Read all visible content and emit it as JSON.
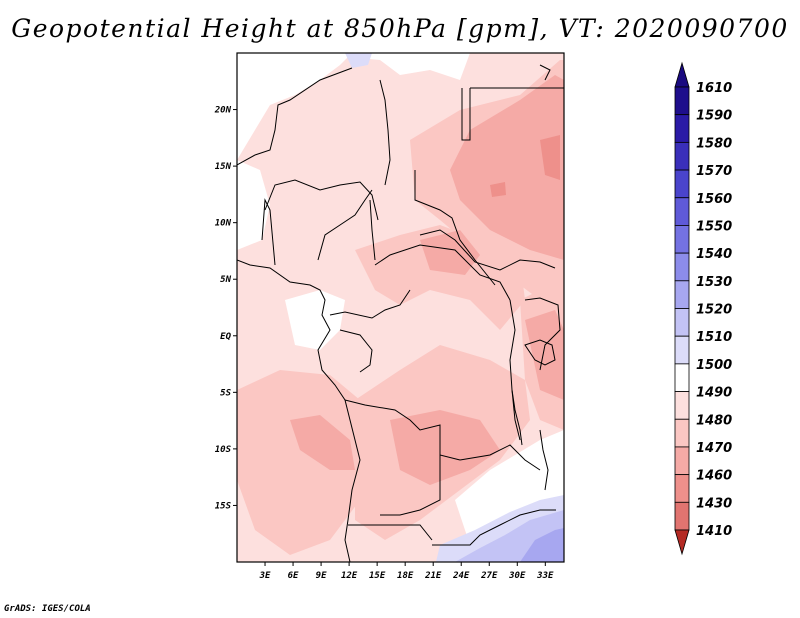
{
  "title": "Geopotential Height at 850hPa [gpm], VT: 2020090700",
  "credit": "GrADS: IGES/COLA",
  "map": {
    "lat_labels": [
      {
        "label": "20N",
        "lat": 20
      },
      {
        "label": "15N",
        "lat": 15
      },
      {
        "label": "10N",
        "lat": 10
      },
      {
        "label": "5N",
        "lat": 5
      },
      {
        "label": "EQ",
        "lat": 0
      },
      {
        "label": "5S",
        "lat": -5
      },
      {
        "label": "10S",
        "lat": -10
      },
      {
        "label": "15S",
        "lat": -15
      }
    ],
    "lon_labels": [
      {
        "label": "3E",
        "lon": 3
      },
      {
        "label": "6E",
        "lon": 6
      },
      {
        "label": "9E",
        "lon": 9
      },
      {
        "label": "12E",
        "lon": 12
      },
      {
        "label": "15E",
        "lon": 15
      },
      {
        "label": "18E",
        "lon": 18
      },
      {
        "label": "21E",
        "lon": 21
      },
      {
        "label": "24E",
        "lon": 24
      },
      {
        "label": "27E",
        "lon": 27
      },
      {
        "label": "30E",
        "lon": 30
      },
      {
        "label": "33E",
        "lon": 33
      }
    ],
    "lon_range": [
      0,
      35
    ],
    "lat_range": [
      -20,
      25
    ]
  },
  "colorbar": {
    "levels": [
      {
        "label": "1610",
        "color": "#1e0e8c"
      },
      {
        "label": "1590",
        "color": "#2a1aa6"
      },
      {
        "label": "1580",
        "color": "#3a2fba"
      },
      {
        "label": "1570",
        "color": "#4a44cc"
      },
      {
        "label": "1560",
        "color": "#5f5ad8"
      },
      {
        "label": "1550",
        "color": "#7472e2"
      },
      {
        "label": "1540",
        "color": "#8c8cea"
      },
      {
        "label": "1530",
        "color": "#a7a7f0"
      },
      {
        "label": "1520",
        "color": "#c3c3f5"
      },
      {
        "label": "1510",
        "color": "#dcdcf9"
      },
      {
        "label": "1500",
        "color": "#ffffff"
      },
      {
        "label": "1490",
        "color": "#fde0de"
      },
      {
        "label": "1480",
        "color": "#fbc7c3"
      },
      {
        "label": "1470",
        "color": "#f5aaa6"
      },
      {
        "label": "1460",
        "color": "#ee908b"
      },
      {
        "label": "1430",
        "color": "#e17470"
      },
      {
        "label": "1410",
        "color": "#d85a55"
      }
    ],
    "top_color": "#1a0a80",
    "bottom_color": "#b42a24"
  },
  "field_colors": {
    "c1510": "#dcdcf9",
    "c1520": "#c3c3f5",
    "c1530": "#a7a7f0",
    "white": "#ffffff",
    "c1490": "#fde0de",
    "c1480": "#fbc7c3",
    "c1470": "#f5aaa6",
    "c1460": "#ee908b"
  }
}
